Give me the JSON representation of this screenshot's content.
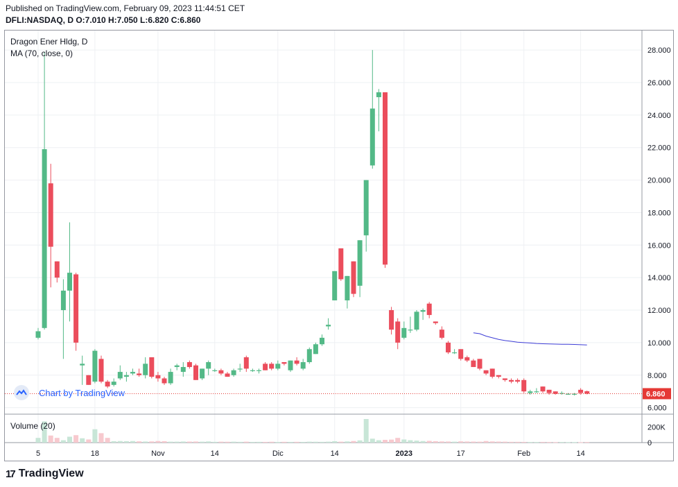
{
  "header": {
    "published": "Published on TradingView.com, February 09, 2023 11:44:51 CET",
    "symbol_line": "DFLI:NASDAQ, D  O:7.010  H:7.050  L:6.820  C:6.860"
  },
  "legend": {
    "title": "Dragon Ener Hldg, D",
    "ma": "MA (70, close, 0)",
    "volume": "Volume (20)"
  },
  "watermark": {
    "text": "Chart by TradingView",
    "icon": "tradingview-cloud-icon"
  },
  "footer": {
    "logo_text": "TradingView",
    "logo_mark": "17",
    "icon": "tradingview-logo-icon"
  },
  "colors": {
    "up": "#53b987",
    "down": "#eb4d5c",
    "up_volume": "#c8e6d7",
    "down_volume": "#f7c9ce",
    "ma_line": "#3c3cd6",
    "last_price": "#e53935",
    "grid": "#eef0f3",
    "axis_text": "#131722"
  },
  "chart_data": {
    "type": "candlestick",
    "title": "Dragon Ener Hldg, D",
    "symbol": "DFLI:NASDAQ",
    "interval": "D",
    "y_axis": {
      "ylim": [
        5.6,
        29.2
      ],
      "ticks": [
        "6.000",
        "8.000",
        "10.000",
        "12.000",
        "14.000",
        "16.000",
        "18.000",
        "20.000",
        "22.000",
        "24.000",
        "26.000",
        "28.000"
      ],
      "position": "right"
    },
    "x_axis": {
      "tick_labels": [
        "5",
        "18",
        "Nov",
        "14",
        "Dic",
        "14",
        "2023",
        "17",
        "Feb",
        "14"
      ],
      "bold_labels": [
        "2023"
      ],
      "bar_index_of_ticks": [
        0,
        9,
        19,
        28,
        38,
        47,
        58,
        67,
        77,
        86
      ]
    },
    "last_price": "6.860",
    "candles": [
      {
        "o": 10.3,
        "h": 10.9,
        "l": 10.2,
        "c": 10.7
      },
      {
        "o": 10.9,
        "h": 27.9,
        "l": 10.8,
        "c": 21.9
      },
      {
        "o": 19.8,
        "h": 21.0,
        "l": 13.4,
        "c": 15.9
      },
      {
        "o": 15.0,
        "h": 15.0,
        "l": 13.7,
        "c": 14.0
      },
      {
        "o": 12.0,
        "h": 13.9,
        "l": 9.0,
        "c": 13.2
      },
      {
        "o": 13.2,
        "h": 17.4,
        "l": 11.3,
        "c": 14.3
      },
      {
        "o": 14.2,
        "h": 14.3,
        "l": 9.5,
        "c": 10.0
      },
      {
        "o": 8.6,
        "h": 9.2,
        "l": 7.4,
        "c": 8.7
      },
      {
        "o": 8.0,
        "h": 8.0,
        "l": 7.4,
        "c": 7.4
      },
      {
        "o": 7.6,
        "h": 9.6,
        "l": 7.5,
        "c": 9.5
      },
      {
        "o": 9.0,
        "h": 9.2,
        "l": 7.5,
        "c": 7.6
      },
      {
        "o": 7.6,
        "h": 7.7,
        "l": 7.2,
        "c": 7.3
      },
      {
        "o": 7.4,
        "h": 7.8,
        "l": 7.3,
        "c": 7.6
      },
      {
        "o": 7.8,
        "h": 8.6,
        "l": 7.7,
        "c": 8.2
      },
      {
        "o": 7.9,
        "h": 8.2,
        "l": 7.6,
        "c": 8.0
      },
      {
        "o": 8.1,
        "h": 8.4,
        "l": 8.0,
        "c": 8.2
      },
      {
        "o": 8.1,
        "h": 8.4,
        "l": 7.9,
        "c": 8.0
      },
      {
        "o": 8.0,
        "h": 9.1,
        "l": 7.8,
        "c": 8.7
      },
      {
        "o": 9.1,
        "h": 9.1,
        "l": 7.8,
        "c": 7.9
      },
      {
        "o": 8.0,
        "h": 8.2,
        "l": 7.6,
        "c": 7.8
      },
      {
        "o": 7.8,
        "h": 7.9,
        "l": 7.4,
        "c": 7.5
      },
      {
        "o": 7.5,
        "h": 8.4,
        "l": 7.4,
        "c": 8.2
      },
      {
        "o": 8.5,
        "h": 8.7,
        "l": 8.3,
        "c": 8.6
      },
      {
        "o": 8.2,
        "h": 8.8,
        "l": 7.9,
        "c": 8.5
      },
      {
        "o": 8.8,
        "h": 8.9,
        "l": 8.4,
        "c": 8.5
      },
      {
        "o": 8.6,
        "h": 8.7,
        "l": 7.7,
        "c": 7.7
      },
      {
        "o": 7.8,
        "h": 8.4,
        "l": 7.7,
        "c": 8.4
      },
      {
        "o": 8.4,
        "h": 8.9,
        "l": 8.0,
        "c": 8.8
      },
      {
        "o": 8.3,
        "h": 8.4,
        "l": 8.2,
        "c": 8.3
      },
      {
        "o": 8.3,
        "h": 8.4,
        "l": 8.0,
        "c": 8.1
      },
      {
        "o": 8.1,
        "h": 8.2,
        "l": 7.9,
        "c": 7.9
      },
      {
        "o": 8.0,
        "h": 8.4,
        "l": 7.9,
        "c": 8.3
      },
      {
        "o": 8.4,
        "h": 8.7,
        "l": 8.2,
        "c": 8.4
      },
      {
        "o": 9.1,
        "h": 9.2,
        "l": 8.2,
        "c": 8.4
      },
      {
        "o": 8.3,
        "h": 8.4,
        "l": 8.2,
        "c": 8.3
      },
      {
        "o": 8.3,
        "h": 8.4,
        "l": 8.1,
        "c": 8.3
      },
      {
        "o": 8.7,
        "h": 8.8,
        "l": 8.3,
        "c": 8.3
      },
      {
        "o": 8.7,
        "h": 8.8,
        "l": 8.3,
        "c": 8.4
      },
      {
        "o": 8.4,
        "h": 8.9,
        "l": 8.3,
        "c": 8.7
      },
      {
        "o": 8.8,
        "h": 8.8,
        "l": 8.6,
        "c": 8.7
      },
      {
        "o": 8.3,
        "h": 8.9,
        "l": 8.2,
        "c": 8.9
      },
      {
        "o": 8.9,
        "h": 9.1,
        "l": 8.6,
        "c": 8.7
      },
      {
        "o": 8.4,
        "h": 9.0,
        "l": 8.3,
        "c": 8.8
      },
      {
        "o": 8.8,
        "h": 9.7,
        "l": 8.7,
        "c": 9.6
      },
      {
        "o": 9.3,
        "h": 10.0,
        "l": 9.3,
        "c": 9.9
      },
      {
        "o": 9.9,
        "h": 10.5,
        "l": 9.8,
        "c": 10.3
      },
      {
        "o": 11.0,
        "h": 11.5,
        "l": 10.8,
        "c": 11.1
      },
      {
        "o": 12.6,
        "h": 14.4,
        "l": 12.6,
        "c": 14.4
      },
      {
        "o": 15.8,
        "h": 15.8,
        "l": 13.8,
        "c": 13.9
      },
      {
        "o": 12.6,
        "h": 14.1,
        "l": 12.1,
        "c": 14.1
      },
      {
        "o": 15.0,
        "h": 15.0,
        "l": 12.8,
        "c": 13.0
      },
      {
        "o": 13.5,
        "h": 16.3,
        "l": 12.8,
        "c": 16.3
      },
      {
        "o": 16.6,
        "h": 20.0,
        "l": 15.6,
        "c": 20.0
      },
      {
        "o": 20.9,
        "h": 28.0,
        "l": 20.7,
        "c": 24.4
      },
      {
        "o": 25.1,
        "h": 25.6,
        "l": 23.0,
        "c": 25.4
      },
      {
        "o": 25.4,
        "h": 25.4,
        "l": 14.6,
        "c": 14.8
      },
      {
        "o": 12.0,
        "h": 12.2,
        "l": 10.5,
        "c": 10.8
      },
      {
        "o": 11.3,
        "h": 11.5,
        "l": 9.6,
        "c": 10.0
      },
      {
        "o": 10.3,
        "h": 11.3,
        "l": 10.2,
        "c": 10.9
      },
      {
        "o": 10.8,
        "h": 11.6,
        "l": 10.6,
        "c": 10.8
      },
      {
        "o": 10.8,
        "h": 12.0,
        "l": 10.7,
        "c": 11.9
      },
      {
        "o": 11.9,
        "h": 12.1,
        "l": 11.4,
        "c": 12.0
      },
      {
        "o": 12.4,
        "h": 12.5,
        "l": 11.5,
        "c": 11.7
      },
      {
        "o": 11.3,
        "h": 11.3,
        "l": 11.1,
        "c": 11.2
      },
      {
        "o": 10.8,
        "h": 11.0,
        "l": 10.2,
        "c": 10.3
      },
      {
        "o": 10.0,
        "h": 10.1,
        "l": 9.3,
        "c": 9.4
      },
      {
        "o": 9.4,
        "h": 9.6,
        "l": 9.3,
        "c": 9.4
      },
      {
        "o": 9.6,
        "h": 9.6,
        "l": 8.9,
        "c": 9.0
      },
      {
        "o": 9.1,
        "h": 9.2,
        "l": 8.8,
        "c": 8.9
      },
      {
        "o": 8.9,
        "h": 9.0,
        "l": 8.5,
        "c": 8.5
      },
      {
        "o": 9.0,
        "h": 9.0,
        "l": 8.3,
        "c": 8.4
      },
      {
        "o": 8.3,
        "h": 8.3,
        "l": 8.0,
        "c": 8.1
      },
      {
        "o": 8.4,
        "h": 8.4,
        "l": 7.8,
        "c": 7.9
      },
      {
        "o": 8.0,
        "h": 8.0,
        "l": 7.8,
        "c": 7.9
      },
      {
        "o": 7.8,
        "h": 7.8,
        "l": 7.6,
        "c": 7.7
      },
      {
        "o": 7.7,
        "h": 7.8,
        "l": 7.5,
        "c": 7.6
      },
      {
        "o": 7.7,
        "h": 7.8,
        "l": 7.5,
        "c": 7.6
      },
      {
        "o": 7.7,
        "h": 7.8,
        "l": 6.9,
        "c": 7.0
      },
      {
        "o": 6.9,
        "h": 7.1,
        "l": 6.8,
        "c": 7.0
      },
      {
        "o": 7.0,
        "h": 7.2,
        "l": 6.9,
        "c": 7.0
      },
      {
        "o": 7.3,
        "h": 7.3,
        "l": 6.9,
        "c": 7.0
      },
      {
        "o": 7.1,
        "h": 7.1,
        "l": 6.8,
        "c": 6.9
      },
      {
        "o": 7.0,
        "h": 7.0,
        "l": 6.8,
        "c": 6.85
      },
      {
        "o": 6.9,
        "h": 7.0,
        "l": 6.8,
        "c": 6.9
      },
      {
        "o": 6.85,
        "h": 6.9,
        "l": 6.8,
        "c": 6.85
      },
      {
        "o": 6.8,
        "h": 6.9,
        "l": 6.75,
        "c": 6.85
      },
      {
        "o": 7.1,
        "h": 7.2,
        "l": 6.8,
        "c": 6.9
      },
      {
        "o": 7.01,
        "h": 7.05,
        "l": 6.82,
        "c": 6.86
      }
    ],
    "volume": {
      "ylim": [
        0,
        300000
      ],
      "ticks": [
        "0",
        "200K"
      ],
      "values": [
        60000,
        270000,
        90000,
        60000,
        30000,
        75000,
        95000,
        55000,
        40000,
        170000,
        120000,
        60000,
        18000,
        20000,
        18000,
        20000,
        16000,
        14000,
        15000,
        20000,
        18000,
        12000,
        12000,
        14000,
        13000,
        14000,
        12000,
        15000,
        10000,
        12000,
        11000,
        12000,
        10000,
        12000,
        9000,
        10000,
        9000,
        11000,
        8000,
        10000,
        9000,
        10000,
        9000,
        12000,
        11000,
        10000,
        12000,
        18000,
        12000,
        15000,
        20000,
        28000,
        300000,
        50000,
        30000,
        35000,
        38000,
        60000,
        40000,
        30000,
        25000,
        20000,
        22000,
        18000,
        15000,
        14000,
        12000,
        16000,
        14000,
        13000,
        12000,
        20000,
        15000,
        13000,
        12000,
        10000,
        10000,
        9000,
        8000,
        8000,
        9000,
        8000,
        7000,
        8000,
        7000,
        7000,
        6000,
        8000
      ]
    },
    "moving_average": {
      "name": "MA (70, close, 0)",
      "start_index": 69,
      "values": [
        10.6,
        10.55,
        10.4,
        10.3,
        10.2,
        10.13,
        10.08,
        10.03,
        10.0,
        9.98,
        9.95,
        9.93,
        9.92,
        9.91,
        9.9,
        9.9,
        9.89,
        9.87,
        9.86
      ]
    }
  }
}
